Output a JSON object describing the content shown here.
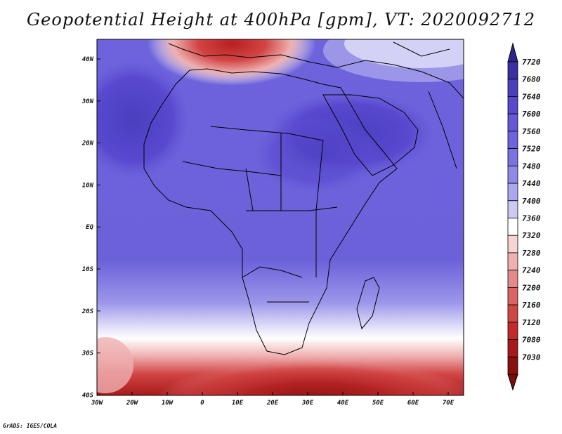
{
  "title": "Geopotential Height at 400hPa [gpm], VT: 2020092712",
  "credit": "GrADS: IGES/COLA",
  "lat_labels": [
    "40N",
    "30N",
    "20N",
    "10N",
    "EQ",
    "10S",
    "20S",
    "30S",
    "40S"
  ],
  "lon_labels": [
    "30W",
    "20W",
    "10W",
    "0",
    "10E",
    "20E",
    "30E",
    "40E",
    "50E",
    "60E",
    "70E"
  ],
  "colorbar": {
    "levels": [
      7720,
      7680,
      7640,
      7600,
      7560,
      7520,
      7480,
      7440,
      7400,
      7360,
      7320,
      7280,
      7240,
      7200,
      7160,
      7120,
      7080,
      7030
    ],
    "colors": [
      "#3b2fa4",
      "#4a3fbf",
      "#5849cf",
      "#6458d8",
      "#6d63dc",
      "#7a73e2",
      "#8f8ae8",
      "#aaa7ef",
      "#cccaf5",
      "#ffffff",
      "#f7d3d3",
      "#efb0b0",
      "#e58a8a",
      "#db6565",
      "#d24545",
      "#c32a2a",
      "#a81a1a",
      "#8a1010"
    ],
    "top_arrow_color": "#2e2490",
    "bottom_arrow_color": "#7a0c0c"
  }
}
